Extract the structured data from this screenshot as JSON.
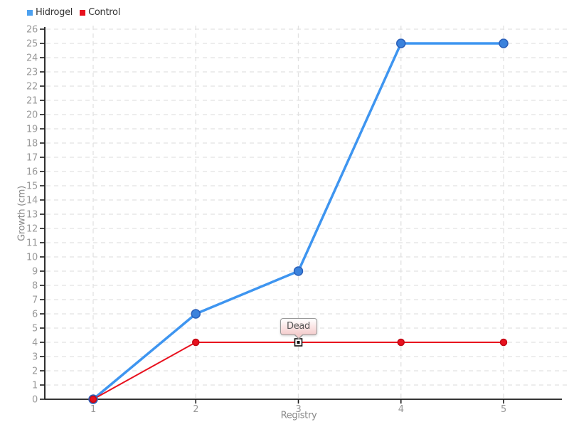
{
  "legend": {
    "items": [
      {
        "label": "Hidrogel",
        "color": "#4DA1F0"
      },
      {
        "label": "Control",
        "color": "#E8111E"
      }
    ]
  },
  "axes": {
    "x_label": "Registry",
    "y_label": "Growth (cm)",
    "x_ticks": [
      1,
      2,
      3,
      4,
      5
    ],
    "y_ticks": [
      0,
      1,
      2,
      3,
      4,
      5,
      6,
      7,
      8,
      9,
      10,
      11,
      12,
      13,
      14,
      15,
      16,
      17,
      18,
      19,
      20,
      21,
      22,
      23,
      24,
      25,
      26
    ]
  },
  "colors": {
    "grid": "#e2e2e2",
    "axis": "#1a1a1a",
    "tick_label": "#999999",
    "axis_title": "#8a8a8a"
  },
  "chart_data": {
    "type": "line",
    "title": "",
    "xlabel": "Registry",
    "ylabel": "Growth (cm)",
    "x": [
      1,
      2,
      3,
      4,
      5
    ],
    "series": [
      {
        "name": "Hidrogel",
        "values": [
          0,
          6,
          9,
          25,
          25
        ],
        "line_color": "#3E95F0",
        "point_fill": "#3B82DC",
        "point_border": "#2B5FB8",
        "line_width": 3.5,
        "point_radius": 6
      },
      {
        "name": "Control",
        "values": [
          0,
          4,
          4,
          4,
          4
        ],
        "line_color": "#E8111E",
        "point_fill": "#E8111E",
        "point_border": "#C00915",
        "line_width": 2,
        "point_radius": 4.5
      }
    ],
    "xlim": [
      0.55,
      5.6
    ],
    "ylim": [
      0,
      26
    ],
    "grid": true,
    "legend_position": "top-left",
    "annotations": [
      {
        "series": "Control",
        "x": 3,
        "y": 4,
        "label": "Dead"
      }
    ]
  }
}
